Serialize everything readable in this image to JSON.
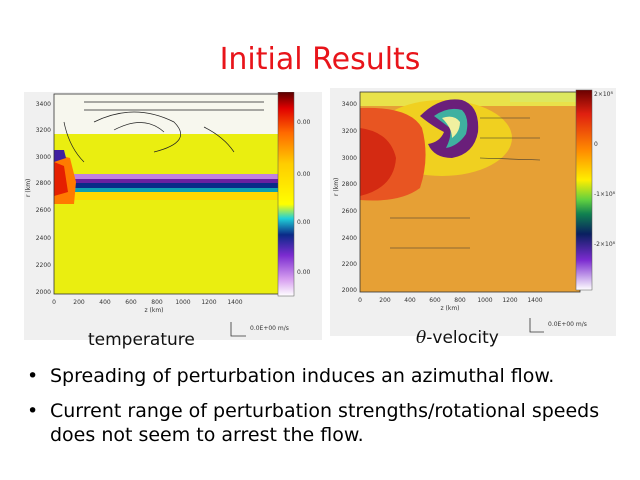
{
  "slide": {
    "title": "Initial Results"
  },
  "figures": [
    {
      "caption": "temperature",
      "y_ticks": [
        "3400",
        "3200",
        "3000",
        "2800",
        "2600",
        "2400",
        "2200",
        "2000"
      ],
      "x_ticks": [
        "0",
        "200",
        "400",
        "600",
        "800",
        "1000",
        "1200",
        "1400"
      ],
      "y_axis_label": "r (km)",
      "x_axis_label": "z (km)",
      "colorbar_ticks": [
        "0.00",
        "0.00",
        "0.00",
        "0.00"
      ],
      "scale_label": "0.0E+00 m/s",
      "colors": [
        "#f5ff00",
        "#ffd500",
        "#7b2bd0",
        "#0a2a88",
        "#20c8d8"
      ]
    },
    {
      "caption_prefix": "θ",
      "caption_suffix": "-velocity",
      "y_ticks": [
        "3400",
        "3200",
        "3000",
        "2800",
        "2600",
        "2400",
        "2200",
        "2000"
      ],
      "x_ticks": [
        "0",
        "200",
        "400",
        "600",
        "800",
        "1000",
        "1200",
        "1400"
      ],
      "y_axis_label": "r (km)",
      "x_axis_label": "z (km)",
      "colorbar_ticks": [
        "2×10⁸",
        "0",
        "-1×10⁸",
        "-2×10⁸"
      ],
      "scale_label": "0.0E+00 m/s",
      "colors": [
        "#e79a2e",
        "#e03a18",
        "#f3e800",
        "#3fb0a0",
        "#6a1f7a"
      ]
    }
  ],
  "bullets": [
    "Spreading of perturbation induces an azimuthal flow.",
    "Current range of perturbation strengths/rotational speeds does not seem to arrest the flow."
  ]
}
